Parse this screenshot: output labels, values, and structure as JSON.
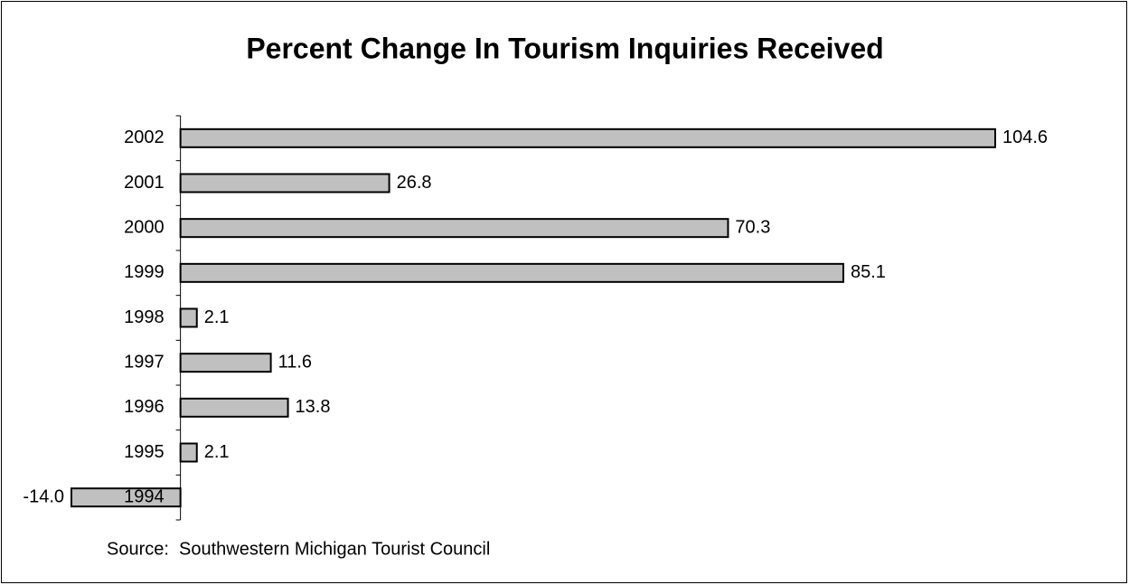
{
  "chart_data": {
    "type": "bar",
    "orientation": "horizontal",
    "title": "Percent Change In Tourism Inquiries Received",
    "categories": [
      "2002",
      "2001",
      "2000",
      "1999",
      "1998",
      "1997",
      "1996",
      "1995",
      "1994"
    ],
    "values": [
      104.6,
      26.8,
      70.3,
      85.1,
      2.1,
      11.6,
      13.8,
      2.1,
      -14
    ],
    "value_labels": [
      "104.6",
      "26.8",
      "70.3",
      "85.1",
      "2.1",
      "11.6",
      "13.8",
      "2.1",
      "-14.0"
    ],
    "color": "#c0c0c0",
    "source": "Source:  Southwestern Michigan Tourist Council"
  }
}
